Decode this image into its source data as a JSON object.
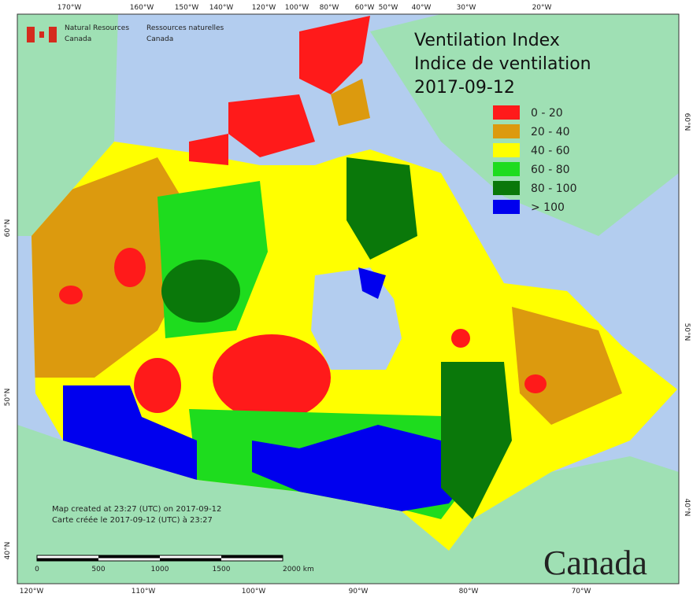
{
  "header": {
    "agency_en": "Natural Resources",
    "agency_en_2": "Canada",
    "agency_fr": "Ressources naturelles",
    "agency_fr_2": "Canada",
    "title_en": "Ventilation Index",
    "title_fr": "Indice de ventilation",
    "date": "2017-09-12"
  },
  "legend": {
    "items": [
      {
        "label": "0 - 20",
        "color": "#ff1a1a"
      },
      {
        "label": "20 - 40",
        "color": "#dc9a0e"
      },
      {
        "label": "40 - 60",
        "color": "#ffff00"
      },
      {
        "label": "60 - 80",
        "color": "#1edc1e"
      },
      {
        "label": "80 - 100",
        "color": "#0a780a"
      },
      {
        "label": "> 100",
        "color": "#0000ee"
      }
    ]
  },
  "graticule": {
    "top": [
      "170°W",
      "160°W",
      "150°W",
      "140°W",
      "120°W",
      "100°W",
      "80°W",
      "60°W",
      "50°W",
      "40°W",
      "30°W",
      "20°W"
    ],
    "bottom": [
      "120°W",
      "110°W",
      "100°W",
      "90°W",
      "80°W",
      "70°W"
    ],
    "left": [
      "60°N",
      "50°N",
      "40°N"
    ],
    "right": [
      "60°N",
      "50°N",
      "40°N"
    ]
  },
  "notes": {
    "created_en": "Map created at 23:27 (UTC) on 2017-09-12",
    "created_fr": "Carte créée le 2017-09-12 (UTC) à 23:27"
  },
  "scale": {
    "labels": [
      "0",
      "500",
      "1000",
      "1500",
      "2000 km"
    ]
  },
  "wordmark": "Canada"
}
